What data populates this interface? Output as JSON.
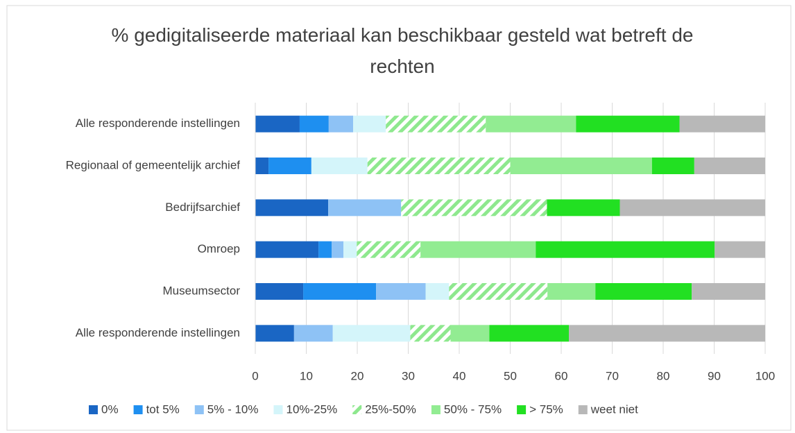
{
  "chart_data": {
    "type": "stacked-bar-horizontal",
    "title": "% gedigitaliseerde materiaal kan beschikbaar gesteld wat betreft de rechten",
    "categories": [
      "Alle responderende instellingen",
      "Regionaal of gemeentelijk archief",
      "Bedrijfsarchief",
      "Omroep",
      "Museumsector",
      "Alle responderende instellingen"
    ],
    "series": [
      {
        "name": "0%",
        "color": "#1a66c4",
        "values": [
          8.7,
          2.6,
          14.3,
          12.4,
          9.4,
          7.6
        ]
      },
      {
        "name": "tot 5%",
        "color": "#1e8ff0",
        "values": [
          5.7,
          8.4,
          0,
          2.6,
          14.3,
          0
        ]
      },
      {
        "name": "5% - 10%",
        "color": "#8ec2f5",
        "values": [
          4.8,
          0,
          14.3,
          2.3,
          9.7,
          7.6
        ]
      },
      {
        "name": "10%-25%",
        "color": "#d4f5fa",
        "values": [
          6.4,
          11.0,
          0,
          2.6,
          4.6,
          15.2
        ]
      },
      {
        "name": "25%-50%",
        "color": "#8ee88e",
        "hatch": true,
        "values": [
          19.6,
          28.0,
          28.6,
          12.5,
          19.3,
          7.9
        ]
      },
      {
        "name": "50% - 75%",
        "color": "#92ec92",
        "values": [
          17.7,
          27.8,
          0,
          22.6,
          9.4,
          7.6
        ]
      },
      {
        "name": "> 75%",
        "color": "#22e022",
        "values": [
          20.3,
          8.3,
          14.3,
          35.1,
          18.9,
          15.6
        ]
      },
      {
        "name": "weet niet",
        "color": "#b8b8b8",
        "values": [
          16.8,
          13.9,
          28.5,
          9.9,
          14.4,
          38.5
        ]
      }
    ],
    "xlim": [
      0,
      100
    ],
    "xticks": [
      0,
      10,
      20,
      30,
      40,
      50,
      60,
      70,
      80,
      90,
      100
    ],
    "grid": true,
    "legend": "bottom"
  }
}
